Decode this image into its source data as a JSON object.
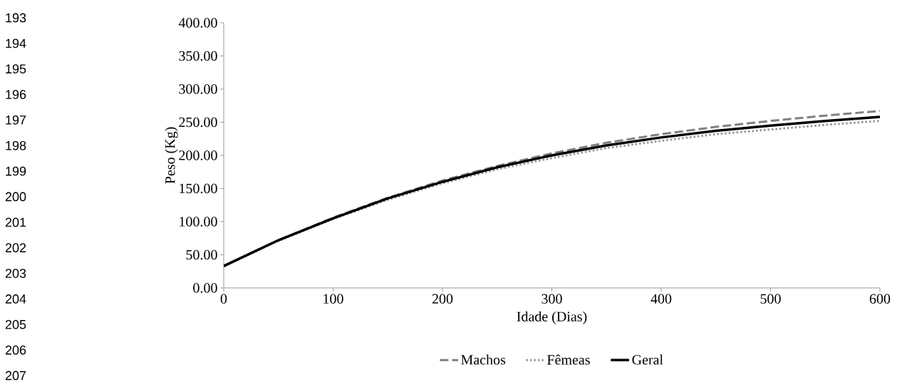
{
  "chart_data": {
    "type": "line",
    "xlabel": "Idade (Dias)",
    "ylabel": "Peso (Kg)",
    "x": [
      0,
      50,
      100,
      150,
      200,
      250,
      300,
      350,
      400,
      450,
      500,
      550,
      600
    ],
    "series": [
      {
        "name": "Machos",
        "color": "#808080",
        "line_style": "dashed",
        "values": [
          33,
          72,
          106,
          136,
          162,
          184,
          203,
          219,
          232,
          243,
          252,
          260,
          267
        ]
      },
      {
        "name": "Fêmeas",
        "color": "#969696",
        "line_style": "dotted",
        "values": [
          33,
          71,
          104,
          133,
          158,
          179,
          196,
          211,
          222,
          232,
          239,
          246,
          252
        ]
      },
      {
        "name": "Geral",
        "color": "#000000",
        "line_style": "solid",
        "values": [
          33,
          72,
          105,
          135,
          160,
          182,
          200,
          215,
          227,
          237,
          245,
          252,
          258
        ]
      }
    ],
    "xlim": [
      0,
      600
    ],
    "xticks": [
      0,
      100,
      200,
      300,
      400,
      500,
      600
    ],
    "ylim": [
      0,
      400
    ],
    "yticks": [
      {
        "value": 0,
        "label": "0.00"
      },
      {
        "value": 50,
        "label": "50.00"
      },
      {
        "value": 100,
        "label": "100.00"
      },
      {
        "value": 150,
        "label": "150.00"
      },
      {
        "value": 200,
        "label": "200.00"
      },
      {
        "value": 250,
        "label": "250.00"
      },
      {
        "value": 300,
        "label": "300.00"
      },
      {
        "value": 350,
        "label": "350.00"
      },
      {
        "value": 400,
        "label": "400.00"
      }
    ],
    "grid": false,
    "legend": "bottom",
    "marker": "none",
    "annotations": [
      "193",
      "194",
      "195",
      "196",
      "197",
      "198",
      "199",
      "200",
      "201",
      "202",
      "203",
      "204",
      "205",
      "206",
      "207"
    ]
  }
}
